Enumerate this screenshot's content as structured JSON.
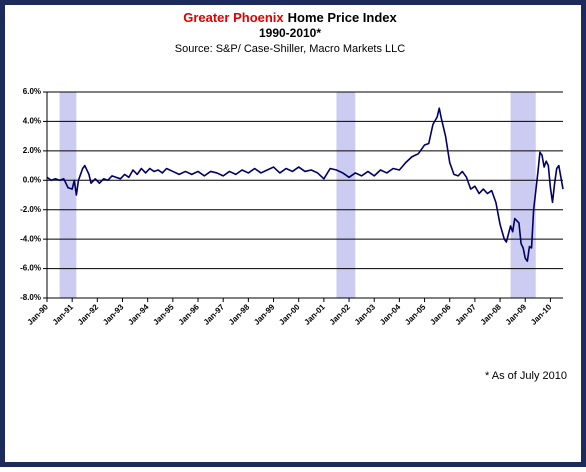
{
  "chart_data": {
    "type": "line",
    "title_highlight": "Greater Phoenix",
    "title": "Home Price Index",
    "subtitle": "1990-2010*",
    "source": "Source: S&P/ Case-Shiller, Macro Markets LLC",
    "footnote": "* As of July 2010",
    "color": "#000066",
    "shade_color": "#ccccf2",
    "shaded_periods": [
      [
        "Jul-90",
        "Mar-91"
      ],
      [
        "Jul-01",
        "Apr-02"
      ],
      [
        "Jun-08",
        "Jun-09"
      ]
    ],
    "xlim": [
      "Jan-90",
      "Jul-10"
    ],
    "xticks": [
      "Jan-90",
      "Jan-91",
      "Jan-92",
      "Jan-93",
      "Jan-94",
      "Jan-95",
      "Jan-96",
      "Jan-97",
      "Jan-98",
      "Jan-99",
      "Jan-00",
      "Jan-01",
      "Jan-02",
      "Jan-03",
      "Jan-04",
      "Jan-05",
      "Jan-06",
      "Jan-07",
      "Jan-08",
      "Jan-09",
      "Jan-10"
    ],
    "ylim": [
      -8,
      6
    ],
    "yticks": [
      {
        "value": -8,
        "label": "-8.0%"
      },
      {
        "value": -6,
        "label": "-6.0%"
      },
      {
        "value": -4,
        "label": "-4.0%"
      },
      {
        "value": -2,
        "label": "-2.0%"
      },
      {
        "value": 0,
        "label": "0.0%"
      },
      {
        "value": 2,
        "label": "2.0%"
      },
      {
        "value": 4,
        "label": "4.0%"
      },
      {
        "value": 6,
        "label": "6.0%"
      }
    ],
    "grid": true,
    "x": [
      "Jan-90",
      "Mar-90",
      "May-90",
      "Jul-90",
      "Sep-90",
      "Nov-90",
      "Jan-91",
      "Feb-91",
      "Mar-91",
      "Apr-91",
      "Jun-91",
      "Jul-91",
      "Sep-91",
      "Oct-91",
      "Dec-91",
      "Feb-92",
      "Apr-92",
      "Jun-92",
      "Aug-92",
      "Oct-92",
      "Dec-92",
      "Feb-93",
      "Apr-93",
      "Jun-93",
      "Aug-93",
      "Oct-93",
      "Dec-93",
      "Feb-94",
      "Apr-94",
      "Jun-94",
      "Aug-94",
      "Oct-94",
      "Jan-95",
      "Apr-95",
      "Jul-95",
      "Oct-95",
      "Jan-96",
      "Apr-96",
      "Jul-96",
      "Oct-96",
      "Jan-97",
      "Apr-97",
      "Jul-97",
      "Oct-97",
      "Jan-98",
      "Apr-98",
      "Jul-98",
      "Oct-98",
      "Jan-99",
      "Apr-99",
      "Jul-99",
      "Oct-99",
      "Jan-00",
      "Apr-00",
      "Jul-00",
      "Oct-00",
      "Jan-01",
      "Apr-01",
      "Jul-01",
      "Oct-01",
      "Jan-02",
      "Apr-02",
      "Jul-02",
      "Oct-02",
      "Jan-03",
      "Apr-03",
      "Jul-03",
      "Oct-03",
      "Jan-04",
      "Apr-04",
      "Jul-04",
      "Oct-04",
      "Jan-05",
      "Mar-05",
      "May-05",
      "Jul-05",
      "Aug-05",
      "Sep-05",
      "Nov-05",
      "Jan-06",
      "Mar-06",
      "May-06",
      "Jul-06",
      "Sep-06",
      "Nov-06",
      "Jan-07",
      "Mar-07",
      "May-07",
      "Jul-07",
      "Sep-07",
      "Nov-07",
      "Jan-08",
      "Mar-08",
      "Apr-08",
      "Jun-08",
      "Jul-08",
      "Aug-08",
      "Oct-08",
      "Nov-08",
      "Dec-08",
      "Jan-09",
      "Feb-09",
      "Mar-09",
      "Apr-09",
      "May-09",
      "Jul-09",
      "Aug-09",
      "Sep-09",
      "Oct-09",
      "Nov-09",
      "Dec-09",
      "Jan-10",
      "Feb-10",
      "Mar-10",
      "Apr-10",
      "May-10",
      "Jun-10",
      "Jul-10"
    ],
    "values": [
      0.2,
      0.0,
      0.1,
      0.0,
      0.1,
      -0.5,
      -0.6,
      0.0,
      -1.0,
      0.0,
      0.8,
      1.0,
      0.4,
      -0.2,
      0.1,
      -0.2,
      0.1,
      0.0,
      0.3,
      0.2,
      0.1,
      0.4,
      0.2,
      0.7,
      0.4,
      0.8,
      0.5,
      0.8,
      0.6,
      0.7,
      0.5,
      0.8,
      0.6,
      0.4,
      0.6,
      0.4,
      0.6,
      0.3,
      0.6,
      0.5,
      0.3,
      0.6,
      0.4,
      0.7,
      0.5,
      0.8,
      0.5,
      0.7,
      0.9,
      0.5,
      0.8,
      0.6,
      0.9,
      0.6,
      0.7,
      0.5,
      0.1,
      0.8,
      0.7,
      0.5,
      0.2,
      0.5,
      0.3,
      0.6,
      0.3,
      0.7,
      0.5,
      0.8,
      0.7,
      1.2,
      1.6,
      1.8,
      2.4,
      2.5,
      3.8,
      4.3,
      4.9,
      4.2,
      3.0,
      1.2,
      0.4,
      0.3,
      0.6,
      0.2,
      -0.6,
      -0.4,
      -0.9,
      -0.6,
      -0.9,
      -0.7,
      -1.5,
      -3.0,
      -4.0,
      -4.2,
      -3.1,
      -3.5,
      -2.6,
      -2.9,
      -4.3,
      -4.6,
      -5.3,
      -5.5,
      -4.5,
      -4.6,
      -2.0,
      0.5,
      1.9,
      1.7,
      0.9,
      1.3,
      1.0,
      -0.5,
      -1.5,
      -0.2,
      0.8,
      1.0,
      0.2,
      -0.6
    ]
  }
}
